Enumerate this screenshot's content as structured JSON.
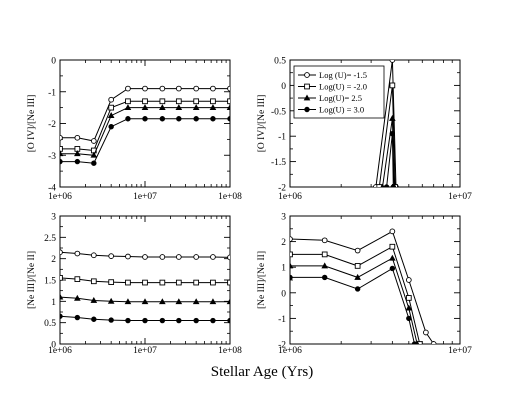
{
  "figure": {
    "xlabel": "Stellar Age (Yrs)"
  },
  "chart_data": [
    {
      "type": "line",
      "panel": "top-left",
      "ylabel": "[O IV]/[Ne III]",
      "xscale": "log",
      "xlim": [
        1000000,
        100000000
      ],
      "ylim": [
        -4,
        0
      ],
      "xticks": [
        1000000,
        10000000,
        100000000
      ],
      "xtick_labels": [
        "1e+06",
        "1e+07",
        "1e+08"
      ],
      "yticks": [
        -4,
        -3,
        -2,
        -1,
        0
      ],
      "ytick_labels": [
        "-4",
        "-3",
        "-2",
        "-1",
        "0"
      ],
      "x": [
        1000000,
        1600000,
        2500000,
        4000000,
        6300000,
        10000000,
        16000000,
        25000000,
        40000000,
        63000000,
        100000000
      ],
      "series": [
        {
          "marker": "circle",
          "values": [
            -2.45,
            -2.45,
            -2.55,
            -1.25,
            -0.9,
            -0.9,
            -0.9,
            -0.9,
            -0.9,
            -0.9,
            -0.9
          ]
        },
        {
          "marker": "square",
          "values": [
            -2.8,
            -2.8,
            -2.85,
            -1.5,
            -1.3,
            -1.3,
            -1.3,
            -1.3,
            -1.3,
            -1.3,
            -1.3
          ]
        },
        {
          "marker": "triangle",
          "values": [
            -2.95,
            -2.95,
            -3.0,
            -1.75,
            -1.5,
            -1.5,
            -1.5,
            -1.5,
            -1.5,
            -1.5,
            -1.5
          ]
        },
        {
          "marker": "filled-circle",
          "values": [
            -3.2,
            -3.2,
            -3.25,
            -2.1,
            -1.85,
            -1.85,
            -1.85,
            -1.85,
            -1.85,
            -1.85,
            -1.85
          ]
        }
      ]
    },
    {
      "type": "line",
      "panel": "top-right",
      "ylabel": "[O IV]/[Ne III]",
      "xscale": "log",
      "xlim": [
        1000000,
        10000000
      ],
      "ylim": [
        -2,
        0.5
      ],
      "xticks": [
        1000000,
        10000000
      ],
      "xtick_labels": [
        "1e+06",
        "1e+07"
      ],
      "yticks": [
        -2,
        -1.5,
        -1,
        -0.5,
        0,
        0.5
      ],
      "ytick_labels": [
        "-2",
        "-1.5",
        "-1",
        "-0.5",
        "0",
        "0.5"
      ],
      "legend": {
        "placement": "top-left",
        "entries": [
          "Log (U)= -1.5",
          "Log(U) = -2.0",
          "Log(U)= 2.5",
          "Log(U) = 3.0"
        ]
      },
      "series": [
        {
          "name": "Log (U)= -1.5",
          "marker": "circle",
          "x": [
            3200000,
            4000000,
            4200000
          ],
          "values": [
            -2.0,
            0.5,
            -2.0
          ]
        },
        {
          "name": "Log(U) = -2.0",
          "marker": "square",
          "x": [
            3350000,
            4000000,
            4150000
          ],
          "values": [
            -2.0,
            0.0,
            -2.0
          ]
        },
        {
          "name": "Log(U)= 2.5",
          "marker": "triangle",
          "x": [
            3500000,
            4000000,
            4100000
          ],
          "values": [
            -2.0,
            -0.65,
            -2.0
          ]
        },
        {
          "name": "Log(U) = 3.0",
          "marker": "filled-circle",
          "x": [
            3700000,
            4000000,
            4050000
          ],
          "values": [
            -2.0,
            -0.95,
            -2.0
          ]
        }
      ]
    },
    {
      "type": "line",
      "panel": "bottom-left",
      "ylabel": "[Ne III]/[Ne II]",
      "xscale": "log",
      "xlim": [
        1000000,
        100000000
      ],
      "ylim": [
        0,
        3
      ],
      "xticks": [
        1000000,
        10000000,
        100000000
      ],
      "xtick_labels": [
        "1e+06",
        "1e+07",
        "1e+08"
      ],
      "yticks": [
        0,
        0.5,
        1,
        1.5,
        2,
        2.5,
        3
      ],
      "ytick_labels": [
        "0",
        "0.5",
        "1",
        "1.5",
        "2",
        "2.5",
        "3"
      ],
      "x": [
        1000000,
        1600000,
        2500000,
        4000000,
        6300000,
        10000000,
        16000000,
        25000000,
        40000000,
        63000000,
        100000000
      ],
      "series": [
        {
          "marker": "circle",
          "values": [
            2.15,
            2.12,
            2.08,
            2.06,
            2.05,
            2.04,
            2.04,
            2.04,
            2.04,
            2.04,
            2.03
          ]
        },
        {
          "marker": "square",
          "values": [
            1.55,
            1.52,
            1.47,
            1.45,
            1.44,
            1.44,
            1.44,
            1.44,
            1.44,
            1.44,
            1.44
          ]
        },
        {
          "marker": "triangle",
          "values": [
            1.1,
            1.07,
            1.02,
            1.0,
            0.99,
            0.99,
            0.99,
            0.99,
            0.99,
            0.99,
            0.99
          ]
        },
        {
          "marker": "filled-circle",
          "values": [
            0.65,
            0.62,
            0.58,
            0.56,
            0.55,
            0.55,
            0.55,
            0.55,
            0.55,
            0.55,
            0.55
          ]
        }
      ]
    },
    {
      "type": "line",
      "panel": "bottom-right",
      "ylabel": "[Ne III]/[Ne II]",
      "xscale": "log",
      "xlim": [
        1000000,
        10000000
      ],
      "ylim": [
        -2,
        3
      ],
      "xticks": [
        1000000,
        10000000
      ],
      "xtick_labels": [
        "1e+06",
        "1e+07"
      ],
      "yticks": [
        -2,
        -1,
        0,
        1,
        2,
        3
      ],
      "ytick_labels": [
        "-2",
        "-1",
        "0",
        "1",
        "2",
        "3"
      ],
      "series": [
        {
          "marker": "circle",
          "x": [
            1000000,
            1600000,
            2500000,
            4000000,
            5000000,
            6300000,
            7000000
          ],
          "values": [
            2.1,
            2.05,
            1.65,
            2.4,
            0.5,
            -1.55,
            -2.0
          ]
        },
        {
          "marker": "square",
          "x": [
            1000000,
            1600000,
            2500000,
            4000000,
            5000000,
            5800000
          ],
          "values": [
            1.5,
            1.5,
            1.05,
            1.8,
            -0.2,
            -2.0
          ]
        },
        {
          "marker": "triangle",
          "x": [
            1000000,
            1600000,
            2500000,
            4000000,
            5000000,
            5600000
          ],
          "values": [
            1.05,
            1.05,
            0.6,
            1.35,
            -0.6,
            -2.0
          ]
        },
        {
          "marker": "filled-circle",
          "x": [
            1000000,
            1600000,
            2500000,
            4000000,
            5000000,
            5400000
          ],
          "values": [
            0.6,
            0.6,
            0.15,
            0.95,
            -1.0,
            -2.0
          ]
        }
      ]
    }
  ]
}
